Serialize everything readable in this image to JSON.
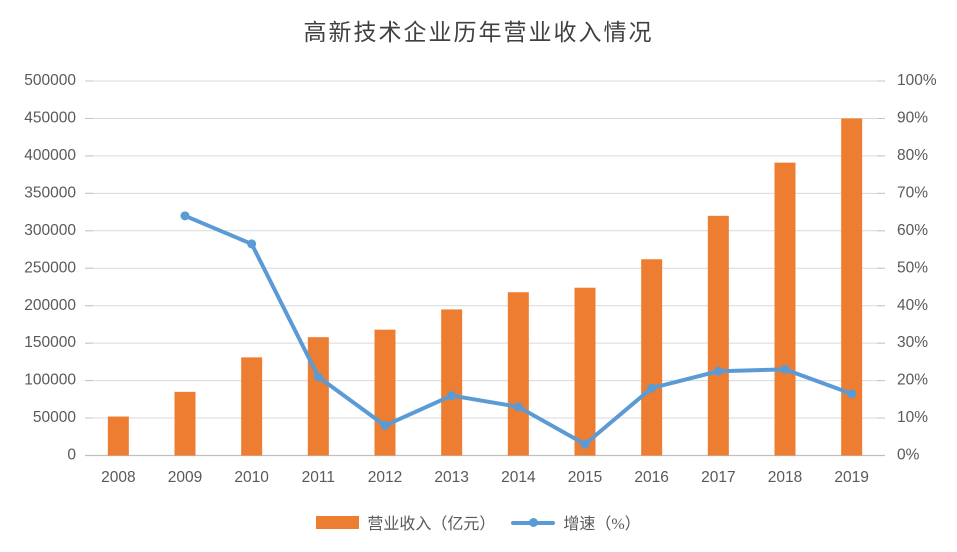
{
  "title": "高新技术企业历年营业收入情况",
  "colors": {
    "bar": "#ED7D31",
    "line": "#5B9BD5",
    "gridline": "#D9D9D9",
    "axis_line": "#BFBFBF",
    "tick": "#C6C6C6",
    "axis_text": "#595959",
    "title_text": "#404040",
    "background": "#FFFFFF"
  },
  "legend": [
    {
      "key": "revenue",
      "type": "bar",
      "label": "营业收入（亿元）",
      "color": "#ED7D31"
    },
    {
      "key": "growth",
      "type": "line",
      "label": "增速（%）",
      "color": "#5B9BD5"
    }
  ],
  "chart_data": {
    "type": "combo",
    "title": "高新技术企业历年营业收入情况",
    "categories": [
      "2008",
      "2009",
      "2010",
      "2011",
      "2012",
      "2013",
      "2014",
      "2015",
      "2016",
      "2017",
      "2018",
      "2019"
    ],
    "series": [
      {
        "name": "营业收入（亿元）",
        "type": "bar",
        "axis": "left",
        "color": "#ED7D31",
        "values": [
          52000,
          85000,
          131000,
          158000,
          168000,
          195000,
          218000,
          224000,
          262000,
          320000,
          391000,
          450000
        ]
      },
      {
        "name": "增速（%）",
        "type": "line",
        "axis": "right",
        "color": "#5B9BD5",
        "values": [
          null,
          64,
          56.5,
          21,
          8,
          16,
          13,
          3,
          18,
          22.5,
          23,
          16.5
        ]
      }
    ],
    "left_axis": {
      "min": 0,
      "max": 500000,
      "step": 50000,
      "tick_labels": [
        "0",
        "50000",
        "100000",
        "150000",
        "200000",
        "250000",
        "300000",
        "350000",
        "400000",
        "450000",
        "500000"
      ]
    },
    "right_axis": {
      "min": 0,
      "max": 100,
      "step": 10,
      "tick_labels": [
        "0%",
        "10%",
        "20%",
        "30%",
        "40%",
        "50%",
        "60%",
        "70%",
        "80%",
        "90%",
        "100%"
      ]
    },
    "grid": true,
    "legend_position": "bottom"
  }
}
